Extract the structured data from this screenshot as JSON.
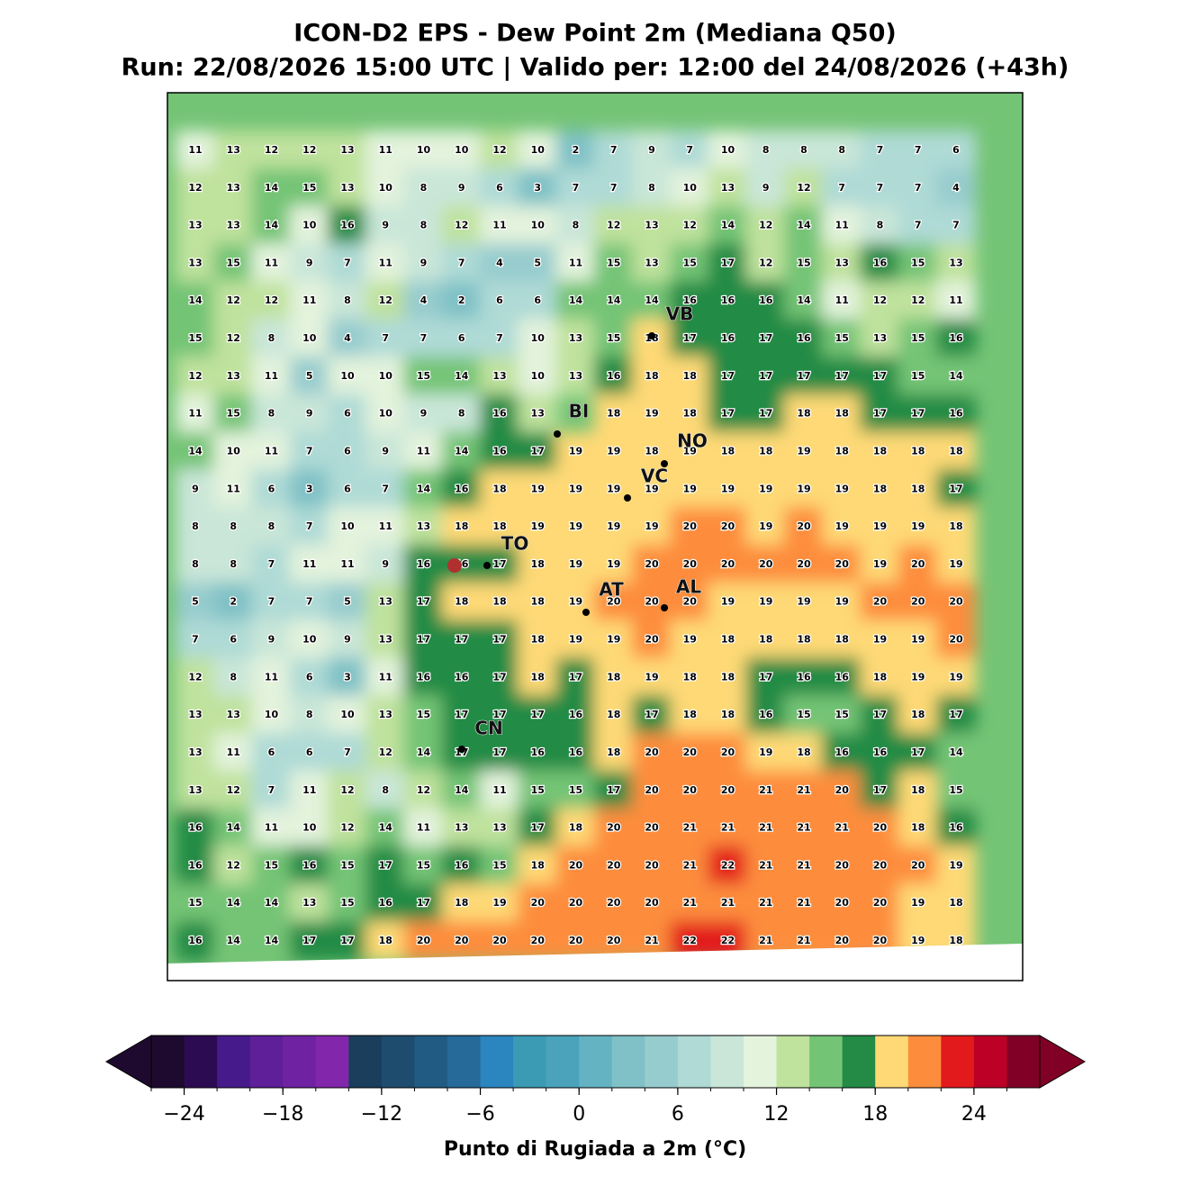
{
  "title": "ICON-D2 EPS - Dew Point 2m (Mediana Q50)",
  "subtitle": "Run: 22/08/2026 15:00 UTC | Valido per: 12:00 del 24/08/2026 (+43h)",
  "grid": [
    [
      11,
      13,
      12,
      12,
      13,
      11,
      10,
      10,
      12,
      10,
      2,
      7,
      9,
      7,
      10,
      8,
      8,
      8,
      7,
      7,
      6
    ],
    [
      12,
      13,
      14,
      15,
      13,
      10,
      8,
      9,
      6,
      3,
      7,
      7,
      8,
      10,
      13,
      9,
      12,
      7,
      7,
      7,
      4
    ],
    [
      13,
      13,
      14,
      10,
      16,
      9,
      8,
      12,
      11,
      10,
      8,
      12,
      13,
      12,
      14,
      12,
      14,
      11,
      8,
      7,
      7
    ],
    [
      13,
      15,
      11,
      9,
      7,
      11,
      9,
      7,
      4,
      5,
      11,
      15,
      13,
      15,
      17,
      12,
      15,
      13,
      16,
      15,
      13
    ],
    [
      14,
      12,
      12,
      11,
      8,
      12,
      4,
      2,
      6,
      6,
      14,
      14,
      14,
      16,
      16,
      16,
      14,
      11,
      12,
      12,
      11
    ],
    [
      15,
      12,
      8,
      10,
      4,
      7,
      7,
      6,
      7,
      10,
      13,
      15,
      18,
      17,
      16,
      17,
      16,
      15,
      13,
      15,
      16
    ],
    [
      12,
      13,
      11,
      5,
      10,
      10,
      15,
      14,
      13,
      10,
      13,
      16,
      18,
      18,
      17,
      17,
      17,
      17,
      17,
      15,
      14
    ],
    [
      11,
      15,
      8,
      9,
      6,
      10,
      9,
      8,
      16,
      13,
      null,
      18,
      19,
      18,
      17,
      17,
      18,
      18,
      17,
      17,
      16
    ],
    [
      14,
      10,
      11,
      7,
      6,
      9,
      11,
      14,
      16,
      17,
      19,
      19,
      18,
      19,
      18,
      18,
      19,
      18,
      18,
      18,
      18
    ],
    [
      9,
      11,
      6,
      3,
      6,
      7,
      14,
      16,
      18,
      19,
      19,
      19,
      19,
      19,
      19,
      19,
      19,
      19,
      18,
      18,
      17
    ],
    [
      8,
      8,
      8,
      7,
      10,
      11,
      13,
      18,
      18,
      19,
      19,
      19,
      19,
      20,
      20,
      19,
      20,
      19,
      19,
      19,
      18
    ],
    [
      8,
      8,
      7,
      11,
      11,
      9,
      16,
      16,
      17,
      18,
      19,
      19,
      20,
      20,
      20,
      20,
      20,
      20,
      19,
      20,
      19
    ],
    [
      5,
      2,
      7,
      7,
      5,
      13,
      17,
      18,
      18,
      18,
      19,
      20,
      20,
      20,
      19,
      19,
      19,
      19,
      20,
      20,
      20
    ],
    [
      7,
      6,
      9,
      10,
      9,
      13,
      17,
      17,
      17,
      18,
      19,
      19,
      20,
      19,
      18,
      18,
      18,
      18,
      19,
      19,
      20
    ],
    [
      12,
      8,
      11,
      6,
      3,
      11,
      16,
      16,
      17,
      18,
      17,
      18,
      19,
      18,
      18,
      17,
      16,
      16,
      18,
      19,
      19
    ],
    [
      13,
      13,
      10,
      8,
      10,
      13,
      15,
      17,
      17,
      17,
      16,
      18,
      17,
      18,
      18,
      16,
      15,
      15,
      17,
      18,
      17
    ],
    [
      13,
      11,
      6,
      6,
      7,
      12,
      14,
      17,
      17,
      16,
      16,
      18,
      20,
      20,
      20,
      19,
      18,
      16,
      16,
      17,
      14
    ],
    [
      13,
      12,
      7,
      11,
      12,
      8,
      12,
      14,
      11,
      15,
      15,
      17,
      20,
      20,
      20,
      21,
      21,
      20,
      17,
      18,
      15
    ],
    [
      16,
      14,
      11,
      10,
      12,
      14,
      11,
      13,
      13,
      17,
      18,
      20,
      20,
      21,
      21,
      21,
      21,
      21,
      20,
      18,
      16
    ],
    [
      16,
      12,
      15,
      16,
      15,
      17,
      15,
      16,
      15,
      18,
      20,
      20,
      20,
      21,
      22,
      21,
      21,
      20,
      20,
      20,
      19
    ],
    [
      15,
      14,
      14,
      13,
      15,
      16,
      17,
      18,
      19,
      20,
      20,
      20,
      20,
      21,
      21,
      21,
      21,
      20,
      20,
      19,
      18
    ],
    [
      16,
      14,
      14,
      17,
      17,
      18,
      20,
      20,
      20,
      20,
      20,
      20,
      21,
      22,
      22,
      21,
      21,
      20,
      20,
      19,
      18
    ]
  ],
  "cities": [
    "VB",
    "BI",
    "NO",
    "VC",
    "TO",
    "AT",
    "AL",
    "CN"
  ],
  "colorbar": {
    "label": "Punto di Rugiada a 2m (°C)",
    "range": [
      -26,
      28
    ],
    "ticks": [
      {
        "value": -24,
        "label": "−24"
      },
      {
        "value": -18,
        "label": "−18"
      },
      {
        "value": -12,
        "label": "−12"
      },
      {
        "value": -6,
        "label": "−6"
      },
      0,
      6,
      12,
      18,
      24
    ],
    "colors": [
      "#1e0a2e",
      "#2d0b52",
      "#461a8a",
      "#5e1f99",
      "#6f23a3",
      "#8226ab",
      "#1a3e5c",
      "#1d4c6f",
      "#215b84",
      "#256a98",
      "#2b85bf",
      "#3b9ab4",
      "#4aa3bb",
      "#64b3c3",
      "#7fc1c6",
      "#97ccce",
      "#afdad6",
      "#c9e6d8",
      "#e3f3dc",
      "#bfe29d",
      "#74c476",
      "#238b45",
      "#fed976",
      "#fd8d3c",
      "#e31a1c",
      "#bd0026",
      "#800026"
    ]
  }
}
